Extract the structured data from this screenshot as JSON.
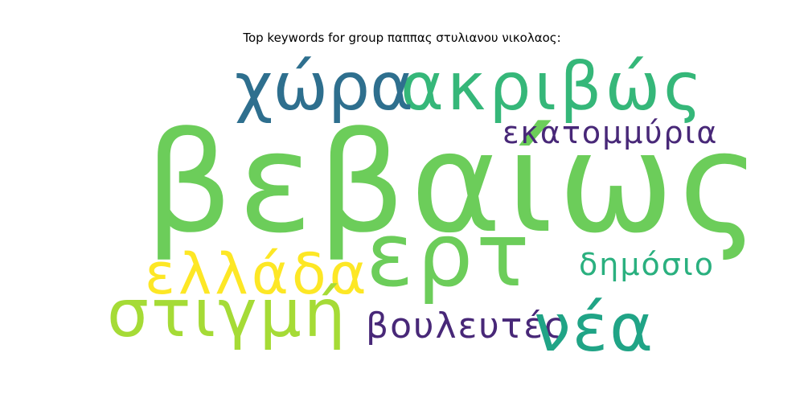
{
  "title": "Top keywords for group παππας στυλιανου νικολαος:",
  "words": [
    {
      "text": "βεβαίως",
      "color": "#6ccd5a"
    },
    {
      "text": "ακριβώς",
      "color": "#35b779"
    },
    {
      "text": "χώρα",
      "color": "#2e6f8e"
    },
    {
      "text": "εκατομμύρια",
      "color": "#482878"
    },
    {
      "text": "ερτ",
      "color": "#6ccd5a"
    },
    {
      "text": "ελλάδα",
      "color": "#fde725"
    },
    {
      "text": "δημόσιο",
      "color": "#2ab07f"
    },
    {
      "text": "στιγμή",
      "color": "#a5db36"
    },
    {
      "text": "βουλευτές",
      "color": "#482878"
    },
    {
      "text": "νέα",
      "color": "#20a486"
    }
  ]
}
